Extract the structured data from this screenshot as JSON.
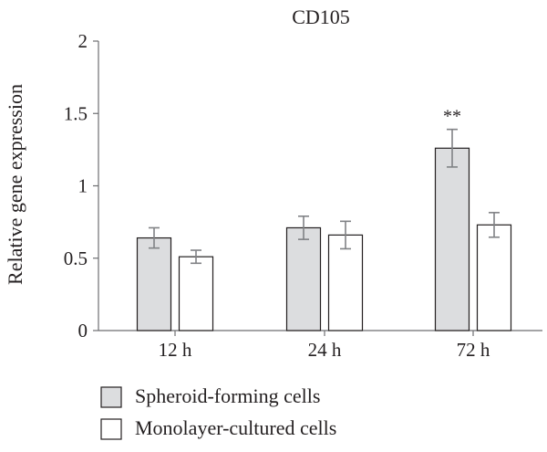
{
  "chart_data": {
    "type": "bar",
    "title": "CD105",
    "xlabel": "",
    "ylabel": "Relative gene expression",
    "categories": [
      "12 h",
      "24 h",
      "72 h"
    ],
    "ylim": [
      0,
      2
    ],
    "yticks": [
      {
        "value": 0,
        "label": "0"
      },
      {
        "value": 0.5,
        "label": "0.5"
      },
      {
        "value": 1,
        "label": "1"
      },
      {
        "value": 1.5,
        "label": "1.5"
      },
      {
        "value": 2,
        "label": "2"
      }
    ],
    "grid": false,
    "legend_position": "bottom-left",
    "series": [
      {
        "name": "Spheroid-forming cells",
        "color": "#dcdddf",
        "values": [
          0.64,
          0.71,
          1.26
        ],
        "errors": [
          0.07,
          0.08,
          0.13
        ]
      },
      {
        "name": "Monolayer-cultured cells",
        "color": "#ffffff",
        "values": [
          0.51,
          0.66,
          0.73
        ],
        "errors": [
          0.045,
          0.095,
          0.085
        ]
      }
    ],
    "annotations": [
      {
        "text": "**",
        "category_index": 2,
        "series_index": 0
      }
    ]
  }
}
